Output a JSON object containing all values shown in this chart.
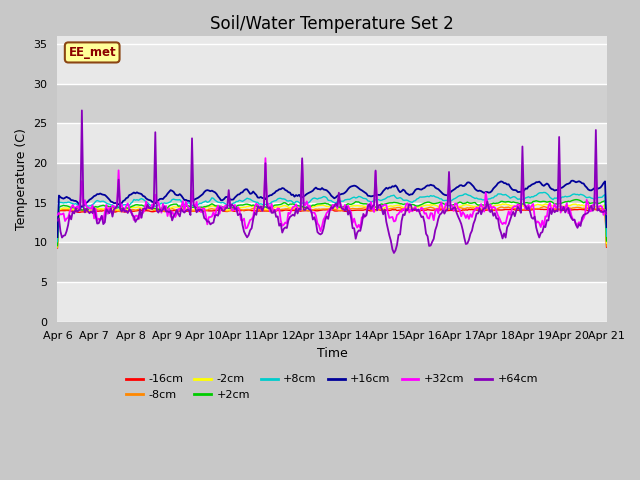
{
  "title": "Soil/Water Temperature Set 2",
  "xlabel": "Time",
  "ylabel": "Temperature (C)",
  "ylim": [
    0,
    36
  ],
  "yticks": [
    0,
    5,
    10,
    15,
    20,
    25,
    30,
    35
  ],
  "xtick_labels": [
    "Apr 6",
    "Apr 7",
    "Apr 8",
    "Apr 9",
    "Apr 10",
    "Apr 11",
    "Apr 12",
    "Apr 13",
    "Apr 14",
    "Apr 15",
    "Apr 16",
    "Apr 17",
    "Apr 18",
    "Apr 19",
    "Apr 20",
    "Apr 21"
  ],
  "watermark": "EE_met",
  "watermark_bg": "#ffff99",
  "watermark_border": "#8b4513",
  "watermark_text_color": "#8b0000",
  "legend_entries": [
    {
      "label": "-16cm",
      "color": "#ff0000"
    },
    {
      "label": "-8cm",
      "color": "#ff8800"
    },
    {
      "label": "-2cm",
      "color": "#ffff00"
    },
    {
      "label": "+2cm",
      "color": "#00cc00"
    },
    {
      "label": "+8cm",
      "color": "#00cccc"
    },
    {
      "label": "+16cm",
      "color": "#000099"
    },
    {
      "label": "+32cm",
      "color": "#ff00ff"
    },
    {
      "label": "+64cm",
      "color": "#8800bb"
    }
  ],
  "bg_light": "#e8e8e8",
  "bg_dark": "#d0d0d0",
  "grid_color": "#ffffff",
  "title_fontsize": 12,
  "axis_label_fontsize": 9,
  "tick_fontsize": 8
}
